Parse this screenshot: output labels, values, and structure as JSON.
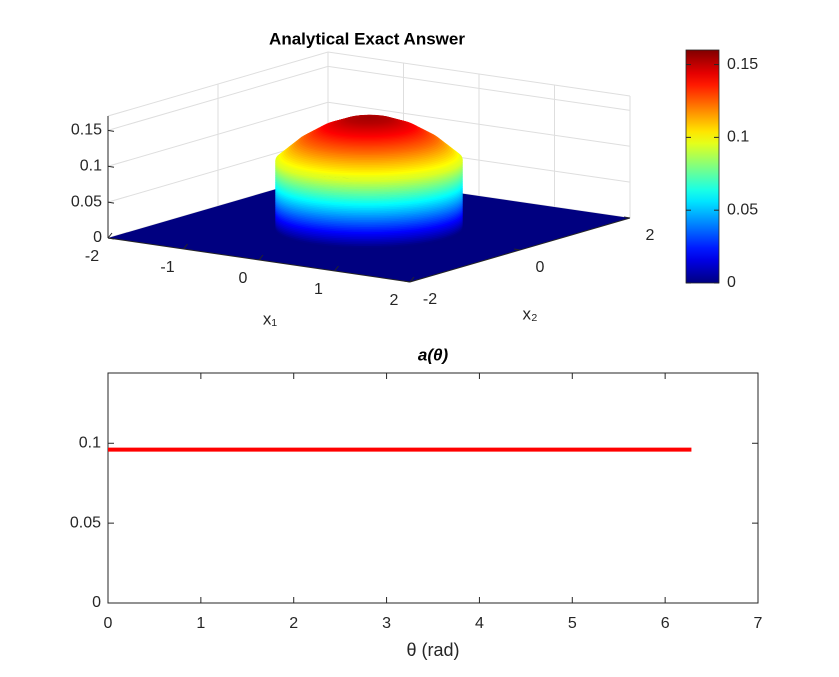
{
  "chart_data": [
    {
      "type": "surface",
      "title": "Analytical Exact Answer",
      "xlabel": "x₁",
      "ylabel": "x₂",
      "radius": [
        0,
        0.25,
        0.5,
        0.75,
        1,
        1
      ],
      "values": [
        0.155,
        0.151,
        0.14,
        0.122,
        0.096,
        0
      ],
      "xlim": [
        -2,
        2
      ],
      "xticks": [
        -2,
        -1,
        0,
        1,
        2
      ],
      "ylim": [
        -2,
        2
      ],
      "yticks": [
        -2,
        0,
        2
      ],
      "zlim": [
        0,
        0.17
      ],
      "zticks": [
        0,
        0.05,
        0.1,
        0.15
      ],
      "colormap": "jet",
      "clim": [
        0,
        0.16
      ],
      "cticks": [
        0,
        0.05,
        0.1,
        0.15
      ],
      "grid": true
    },
    {
      "type": "line",
      "title": "a(θ)",
      "xlabel": "θ  (rad)",
      "x": [
        0,
        6.283
      ],
      "values": [
        0.096,
        0.096
      ],
      "color": "#ff0000",
      "xlim": [
        0,
        7
      ],
      "xticks": [
        0,
        1,
        2,
        3,
        4,
        5,
        6,
        7
      ],
      "ylim": [
        0,
        0.144
      ],
      "yticks": [
        0,
        0.05,
        0.1
      ],
      "grid": false
    }
  ]
}
